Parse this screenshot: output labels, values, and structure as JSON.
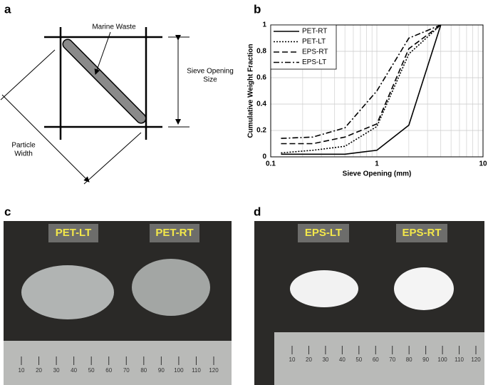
{
  "panels": {
    "a": "a",
    "b": "b",
    "c": "c",
    "d": "d"
  },
  "diagram": {
    "marine_label": "Marine Waste",
    "sieve_label": [
      "Sieve Opening",
      "Size"
    ],
    "width_label": [
      "Particle",
      "Width"
    ]
  },
  "chart_data": {
    "type": "line",
    "x_label": "Sieve Opening (mm)",
    "y_label": "Cumulative Weight Fraction",
    "x": [
      0.125,
      0.25,
      0.5,
      1,
      2,
      4
    ],
    "xscale": "log",
    "xlim": [
      0.1,
      10
    ],
    "xticks": [
      0.1,
      1,
      10
    ],
    "ylim": [
      0,
      1
    ],
    "yticks": [
      0,
      0.2,
      0.4,
      0.6,
      0.8,
      1
    ],
    "grid": true,
    "legend": "upper left",
    "series": [
      {
        "name": "PET-RT",
        "color": "#000000",
        "dash": "solid",
        "values": [
          0.02,
          0.02,
          0.02,
          0.05,
          0.24,
          1
        ]
      },
      {
        "name": "PET-LT",
        "color": "#000000",
        "dash": "dotted",
        "values": [
          0.03,
          0.05,
          0.08,
          0.23,
          0.78,
          1
        ]
      },
      {
        "name": "EPS-RT",
        "color": "#000000",
        "dash": "dashed",
        "values": [
          0.1,
          0.1,
          0.15,
          0.25,
          0.82,
          1
        ]
      },
      {
        "name": "EPS-LT",
        "color": "#000000",
        "dash": "dashdot",
        "values": [
          0.14,
          0.15,
          0.22,
          0.5,
          0.9,
          1
        ]
      }
    ]
  },
  "photos": {
    "c": {
      "tags": [
        "PET-LT",
        "PET-RT"
      ],
      "ruler": [
        "10",
        "20",
        "30",
        "40",
        "50",
        "60",
        "70",
        "80",
        "90",
        "100",
        "110",
        "120"
      ]
    },
    "d": {
      "tags": [
        "EPS-LT",
        "EPS-RT"
      ],
      "ruler": [
        "10",
        "20",
        "30",
        "40",
        "50",
        "60",
        "70",
        "80",
        "90",
        "100",
        "110",
        "120"
      ]
    }
  }
}
